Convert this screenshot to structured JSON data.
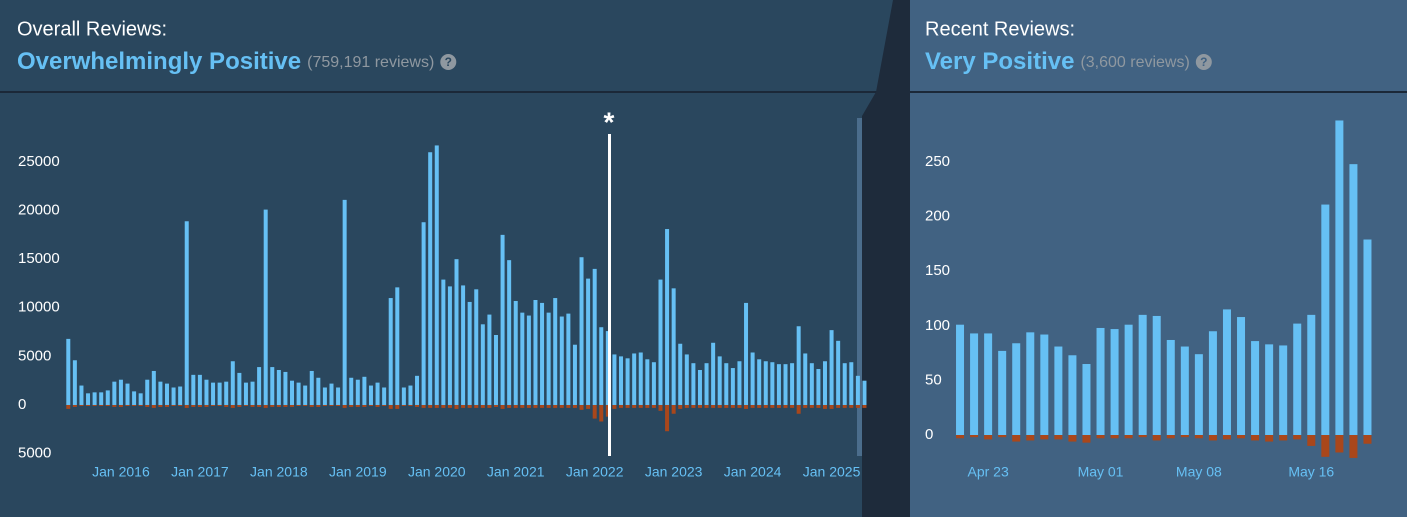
{
  "chart_data": [
    {
      "type": "bar",
      "title": "Overall Reviews:",
      "subtitle": "Overwhelmingly Positive",
      "note": "(759,191 reviews)",
      "annotation": "*",
      "categories": [
        null,
        null,
        null,
        null,
        null,
        null,
        null,
        null,
        "Jan 2016",
        null,
        null,
        null,
        null,
        null,
        null,
        null,
        null,
        null,
        null,
        null,
        "Jan 2017",
        null,
        null,
        null,
        null,
        null,
        null,
        null,
        null,
        null,
        null,
        null,
        "Jan 2018",
        null,
        null,
        null,
        null,
        null,
        null,
        null,
        null,
        null,
        null,
        null,
        "Jan 2019",
        null,
        null,
        null,
        null,
        null,
        null,
        null,
        null,
        null,
        null,
        null,
        "Jan 2020",
        null,
        null,
        null,
        null,
        null,
        null,
        null,
        null,
        null,
        null,
        null,
        "Jan 2021",
        null,
        null,
        null,
        null,
        null,
        null,
        null,
        null,
        null,
        null,
        null,
        "Jan 2022",
        null,
        null,
        null,
        null,
        null,
        null,
        null,
        null,
        null,
        null,
        null,
        "Jan 2023",
        null,
        null,
        null,
        null,
        null,
        null,
        null,
        null,
        null,
        null,
        null,
        "Jan 2024",
        null,
        null,
        null,
        null,
        null,
        null,
        null,
        null,
        null,
        null,
        null,
        "Jan 2025",
        null,
        null,
        null,
        null,
        null
      ],
      "series": [
        {
          "color": "#66c0f4",
          "values": [
            6800,
            4600,
            2000,
            1200,
            1300,
            1300,
            1500,
            2400,
            2600,
            2200,
            1400,
            1200,
            2600,
            3500,
            2400,
            2200,
            1800,
            1900,
            18900,
            3100,
            3100,
            2600,
            2300,
            2300,
            2400,
            4500,
            3300,
            2300,
            2400,
            3900,
            20100,
            3900,
            3600,
            3400,
            2500,
            2300,
            2000,
            3500,
            2800,
            1800,
            2200,
            1800,
            21100,
            2800,
            2600,
            2900,
            2000,
            2300,
            1800,
            11000,
            12100,
            1800,
            2000,
            3000,
            18800,
            26000,
            26700,
            12900,
            12200,
            15000,
            12300,
            10600,
            11900,
            8300,
            9300,
            7200,
            17500,
            14900,
            10700,
            9500,
            9200,
            10800,
            10500,
            9500,
            11000,
            9100,
            9400,
            6200,
            15200,
            13000,
            14000,
            8000,
            7600,
            5200,
            5000,
            4800,
            5300,
            5400,
            4700,
            4400,
            12900,
            18100,
            12000,
            6300,
            5200,
            4300,
            3600,
            4300,
            6400,
            5000,
            4300,
            3800,
            4500,
            10500,
            5400,
            4700,
            4500,
            4400,
            4200,
            4200,
            4300,
            8100,
            5300,
            4300,
            3700,
            4500,
            7700,
            6600,
            4300,
            4400,
            3000,
            2500
          ]
        },
        {
          "color": "#a9471b",
          "values": [
            -400,
            -200,
            -100,
            -100,
            -100,
            -100,
            -100,
            -200,
            -200,
            -100,
            -100,
            -100,
            -200,
            -300,
            -200,
            -200,
            -100,
            -100,
            -300,
            -200,
            -200,
            -200,
            -100,
            -100,
            -200,
            -300,
            -200,
            -100,
            -200,
            -200,
            -300,
            -200,
            -200,
            -200,
            -200,
            -100,
            -100,
            -200,
            -200,
            -100,
            -100,
            -100,
            -300,
            -200,
            -200,
            -200,
            -100,
            -200,
            -100,
            -400,
            -400,
            -100,
            -100,
            -200,
            -300,
            -300,
            -300,
            -300,
            -300,
            -400,
            -300,
            -300,
            -300,
            -300,
            -300,
            -200,
            -400,
            -300,
            -300,
            -300,
            -300,
            -300,
            -300,
            -300,
            -300,
            -300,
            -300,
            -300,
            -500,
            -400,
            -1400,
            -1700,
            -1200,
            -400,
            -300,
            -300,
            -300,
            -300,
            -300,
            -300,
            -600,
            -2700,
            -900,
            -400,
            -300,
            -300,
            -300,
            -300,
            -300,
            -300,
            -300,
            -300,
            -300,
            -400,
            -300,
            -300,
            -300,
            -300,
            -300,
            -300,
            -300,
            -900,
            -300,
            -300,
            -300,
            -400,
            -400,
            -300,
            -300,
            -300,
            -300,
            -300
          ]
        }
      ],
      "ylim": [
        -5700,
        29800
      ],
      "yticks": [
        {
          "value": -5000,
          "label": "5000"
        },
        0,
        5000,
        10000,
        15000,
        20000,
        25000
      ]
    },
    {
      "type": "bar",
      "title": "Recent Reviews:",
      "subtitle": "Very Positive",
      "note": "(3,600 reviews)",
      "categories": [
        null,
        null,
        "Apr 23",
        null,
        null,
        null,
        null,
        null,
        null,
        null,
        "May 01",
        null,
        null,
        null,
        null,
        null,
        null,
        "May 08",
        null,
        null,
        null,
        null,
        null,
        null,
        null,
        "May 16",
        null,
        null,
        null,
        null
      ],
      "series": [
        {
          "color": "#66c0f4",
          "values": [
            101,
            93,
            93,
            77,
            84,
            94,
            92,
            81,
            73,
            65,
            98,
            97,
            101,
            110,
            109,
            87,
            81,
            74,
            95,
            115,
            108,
            86,
            83,
            82,
            102,
            110,
            211,
            288,
            248,
            179
          ]
        },
        {
          "color": "#a9471b",
          "values": [
            -3,
            -2,
            -4,
            -2,
            -6,
            -5,
            -4,
            -4,
            -6,
            -7,
            -3,
            -3,
            -3,
            -2,
            -5,
            -3,
            -2,
            -3,
            -5,
            -4,
            -3,
            -5,
            -6,
            -5,
            -4,
            -10,
            -20,
            -16,
            -21,
            -8
          ]
        }
      ],
      "ylim": [
        -25,
        292
      ],
      "yticks": [
        0,
        50,
        100,
        150,
        200,
        250
      ]
    }
  ]
}
